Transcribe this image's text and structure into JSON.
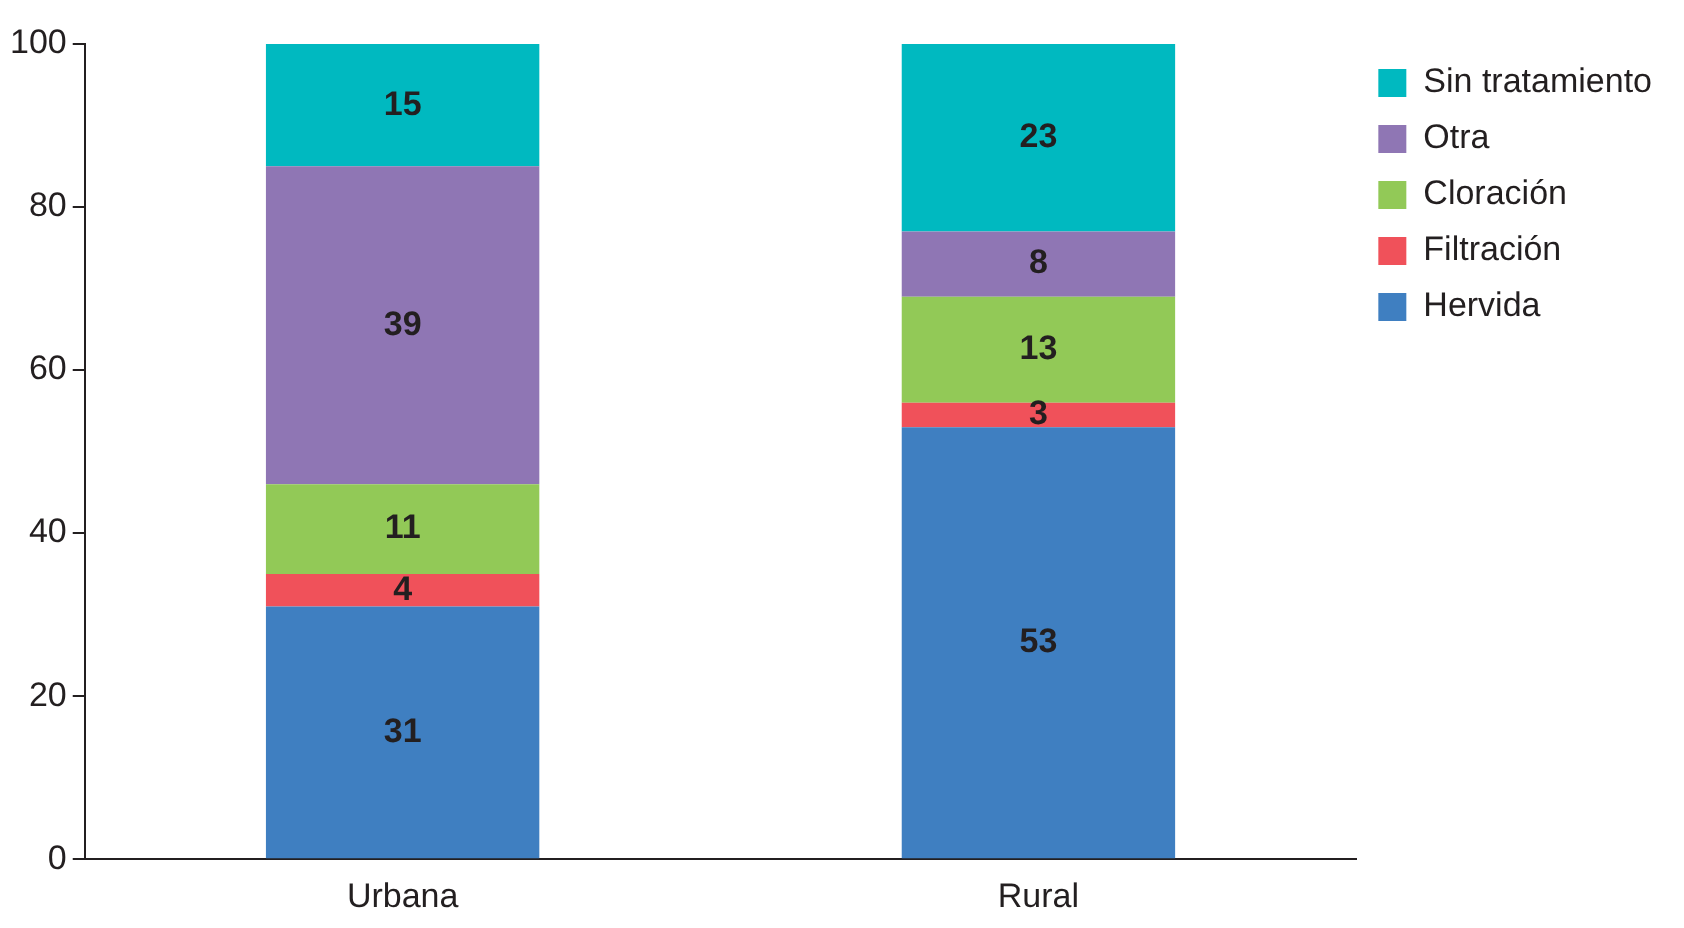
{
  "chart_data": {
    "type": "bar",
    "stacked": true,
    "categories": [
      "Urbana",
      "Rural"
    ],
    "series": [
      {
        "name": "Hervida",
        "color": "#3f7fc1",
        "values": [
          31,
          53
        ]
      },
      {
        "name": "Filtración",
        "color": "#f0515a",
        "values": [
          4,
          3
        ]
      },
      {
        "name": "Cloración",
        "color": "#92c957",
        "values": [
          11,
          13
        ]
      },
      {
        "name": "Otra",
        "color": "#8f76b4",
        "values": [
          39,
          8
        ]
      },
      {
        "name": "Sin tratamiento",
        "color": "#00b9c0",
        "values": [
          15,
          23
        ]
      }
    ],
    "ylim": [
      0,
      100
    ],
    "yticks": [
      0,
      20,
      40,
      60,
      80,
      100
    ],
    "grid": false,
    "legend": "top right",
    "data_labels": true
  }
}
